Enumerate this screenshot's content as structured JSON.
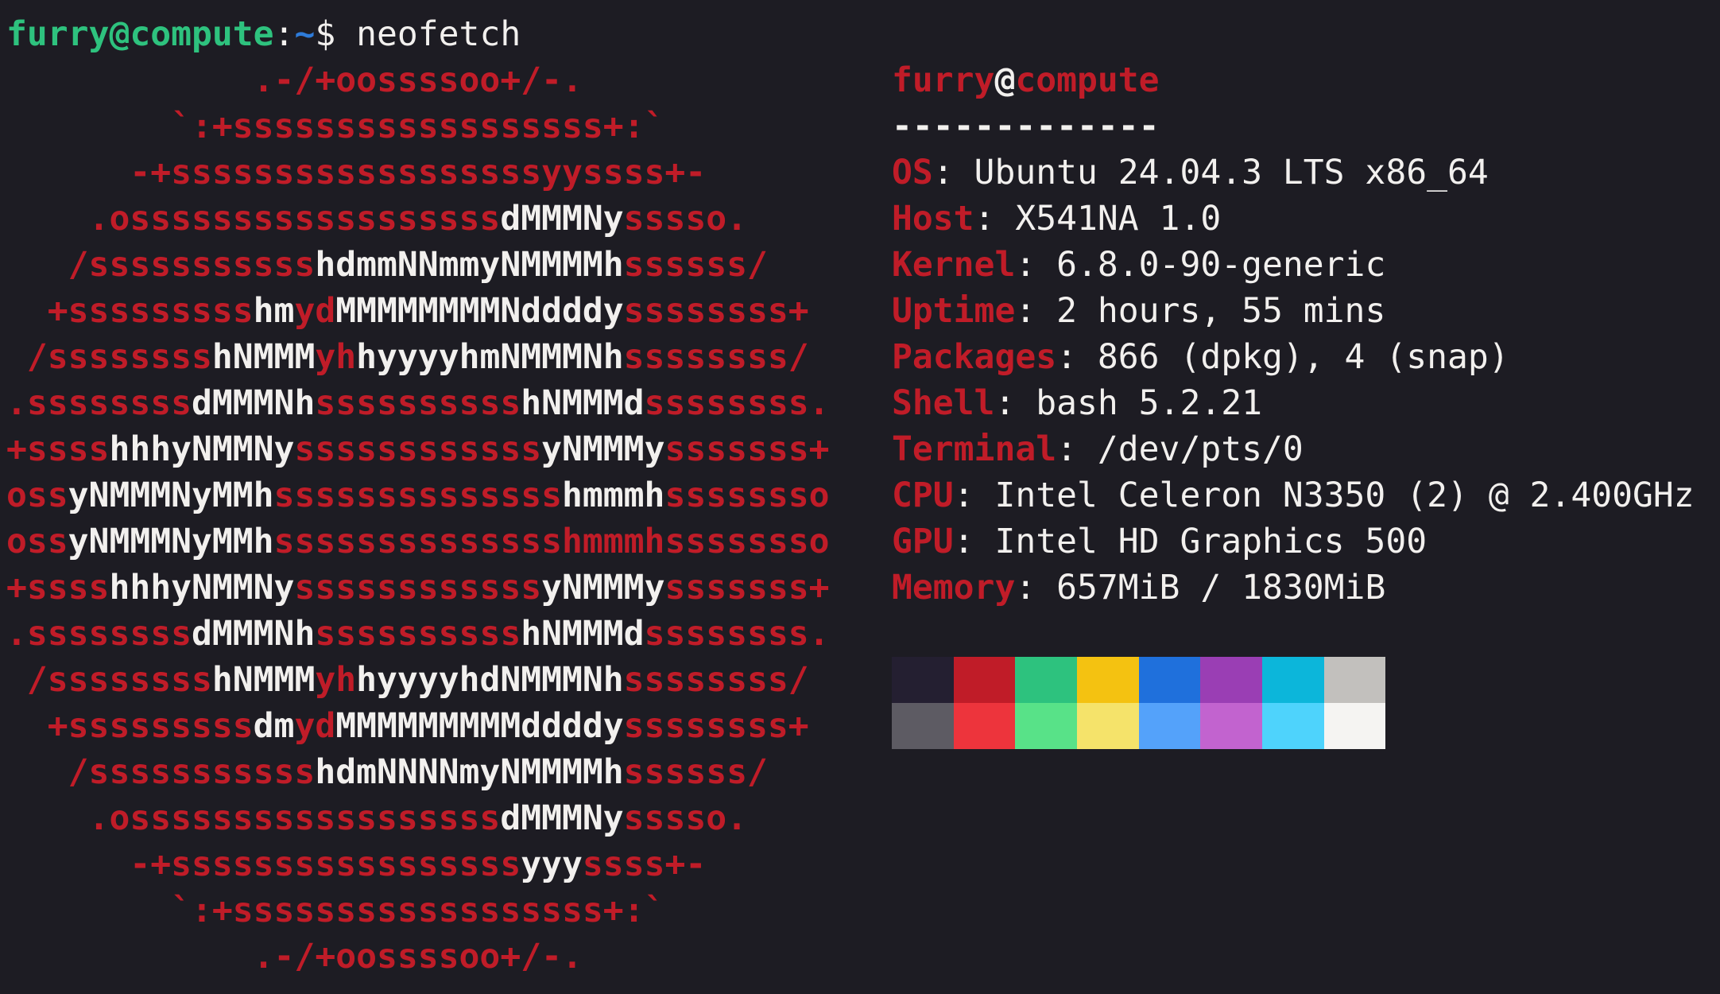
{
  "terminal": {
    "colors": {
      "background": "#1d1c23",
      "foreground": "#f2f0ee",
      "red": "#c01c28",
      "green": "#2ec27e",
      "blue": "#2e7bd9"
    },
    "prompt": {
      "segments": [
        {
          "text": "furry@compute",
          "color": "green",
          "bold": true
        },
        {
          "text": ":",
          "color": "foreground",
          "bold": false
        },
        {
          "text": "~",
          "color": "blue",
          "bold": true
        },
        {
          "text": "$ ",
          "color": "foreground",
          "bold": false
        },
        {
          "text": "neofetch",
          "color": "foreground",
          "bold": false
        }
      ]
    },
    "ascii_logo": {
      "name": "ubuntu-logo",
      "lines": [
        [
          [
            "red",
            "            .-/+oossssoo+/-."
          ]
        ],
        [
          [
            "red",
            "        `:+ssssssssssssssssss+:`"
          ]
        ],
        [
          [
            "red",
            "      -+ssssssssssssssssssyyssss+-"
          ]
        ],
        [
          [
            "red",
            "    .ossssssssssssssssss"
          ],
          [
            "foreground",
            "dMMMNy"
          ],
          [
            "red",
            "sssso."
          ]
        ],
        [
          [
            "red",
            "   /sssssssssss"
          ],
          [
            "foreground",
            "hdmmNNmmyNMMMMh"
          ],
          [
            "red",
            "ssssss/"
          ]
        ],
        [
          [
            "red",
            "  +sssssssss"
          ],
          [
            "foreground",
            "hm"
          ],
          [
            "red",
            "yd"
          ],
          [
            "foreground",
            "MMMMMMMMNddddy"
          ],
          [
            "red",
            "ssssssss+"
          ]
        ],
        [
          [
            "red",
            " /ssssssss"
          ],
          [
            "foreground",
            "hNMMM"
          ],
          [
            "red",
            "yh"
          ],
          [
            "foreground",
            "hyyyyhmNMMMNh"
          ],
          [
            "red",
            "ssssssss/"
          ]
        ],
        [
          [
            "red",
            ".ssssssss"
          ],
          [
            "foreground",
            "dMMMNh"
          ],
          [
            "red",
            "ssssssssss"
          ],
          [
            "foreground",
            "hNMMMd"
          ],
          [
            "red",
            "ssssssss."
          ]
        ],
        [
          [
            "red",
            "+ssss"
          ],
          [
            "foreground",
            "hhhyNMMNy"
          ],
          [
            "red",
            "ssssssssssss"
          ],
          [
            "foreground",
            "yNMMMy"
          ],
          [
            "red",
            "sssssss+"
          ]
        ],
        [
          [
            "red",
            "oss"
          ],
          [
            "foreground",
            "yNMMMNyMMh"
          ],
          [
            "red",
            "ssssssssssssss"
          ],
          [
            "foreground",
            "hmmmh"
          ],
          [
            "red",
            "ssssssso"
          ]
        ],
        [
          [
            "red",
            "oss"
          ],
          [
            "foreground",
            "yNMMMNyMMh"
          ],
          [
            "red",
            "sssssssssssssshmmmhssssssso"
          ]
        ],
        [
          [
            "red",
            "+ssss"
          ],
          [
            "foreground",
            "hhhyNMMNy"
          ],
          [
            "red",
            "ssssssssssss"
          ],
          [
            "foreground",
            "yNMMMy"
          ],
          [
            "red",
            "sssssss+"
          ]
        ],
        [
          [
            "red",
            ".ssssssss"
          ],
          [
            "foreground",
            "dMMMNh"
          ],
          [
            "red",
            "ssssssssss"
          ],
          [
            "foreground",
            "hNMMMd"
          ],
          [
            "red",
            "ssssssss."
          ]
        ],
        [
          [
            "red",
            " /ssssssss"
          ],
          [
            "foreground",
            "hNMMM"
          ],
          [
            "red",
            "yh"
          ],
          [
            "foreground",
            "hyyyyhdNMMMNh"
          ],
          [
            "red",
            "ssssssss/"
          ]
        ],
        [
          [
            "red",
            "  +sssssssss"
          ],
          [
            "foreground",
            "dm"
          ],
          [
            "red",
            "yd"
          ],
          [
            "foreground",
            "MMMMMMMMMddddy"
          ],
          [
            "red",
            "ssssssss+"
          ]
        ],
        [
          [
            "red",
            "   /sssssssssss"
          ],
          [
            "foreground",
            "hdmNNNNmyNMMMMh"
          ],
          [
            "red",
            "ssssss/"
          ]
        ],
        [
          [
            "red",
            "    .ossssssssssssssssss"
          ],
          [
            "foreground",
            "dMMMNy"
          ],
          [
            "red",
            "sssso."
          ]
        ],
        [
          [
            "red",
            "      -+sssssssssssssssss"
          ],
          [
            "foreground",
            "yyy"
          ],
          [
            "red",
            "ssss+-"
          ]
        ],
        [
          [
            "red",
            "        `:+ssssssssssssssssss+:`"
          ]
        ],
        [
          [
            "red",
            "            .-/+oossssoo+/-."
          ]
        ]
      ]
    },
    "info": {
      "title": [
        {
          "text": "furry",
          "color": "red"
        },
        {
          "text": "@",
          "color": "foreground"
        },
        {
          "text": "compute",
          "color": "red"
        }
      ],
      "separator": "-------------",
      "rows": [
        {
          "label": "OS",
          "value": "Ubuntu 24.04.3 LTS x86_64"
        },
        {
          "label": "Host",
          "value": "X541NA 1.0"
        },
        {
          "label": "Kernel",
          "value": "6.8.0-90-generic"
        },
        {
          "label": "Uptime",
          "value": "2 hours, 55 mins"
        },
        {
          "label": "Packages",
          "value": "866 (dpkg), 4 (snap)"
        },
        {
          "label": "Shell",
          "value": "bash 5.2.21"
        },
        {
          "label": "Terminal",
          "value": "/dev/pts/0"
        },
        {
          "label": "CPU",
          "value": "Intel Celeron N3350 (2) @ 2.400GHz"
        },
        {
          "label": "GPU",
          "value": "Intel HD Graphics 500"
        },
        {
          "label": "Memory",
          "value": "657MiB / 1830MiB"
        }
      ],
      "palette": {
        "normal": [
          "#241f31",
          "#c01c28",
          "#2dc27e",
          "#f4c211",
          "#1f70dc",
          "#9a3eb4",
          "#0cb6da",
          "#c2c0bd"
        ],
        "bright": [
          "#5d5b63",
          "#ed343c",
          "#58e288",
          "#f5e36a",
          "#54a2fa",
          "#c263cf",
          "#4ed3fc",
          "#f5f4f2"
        ]
      }
    }
  }
}
